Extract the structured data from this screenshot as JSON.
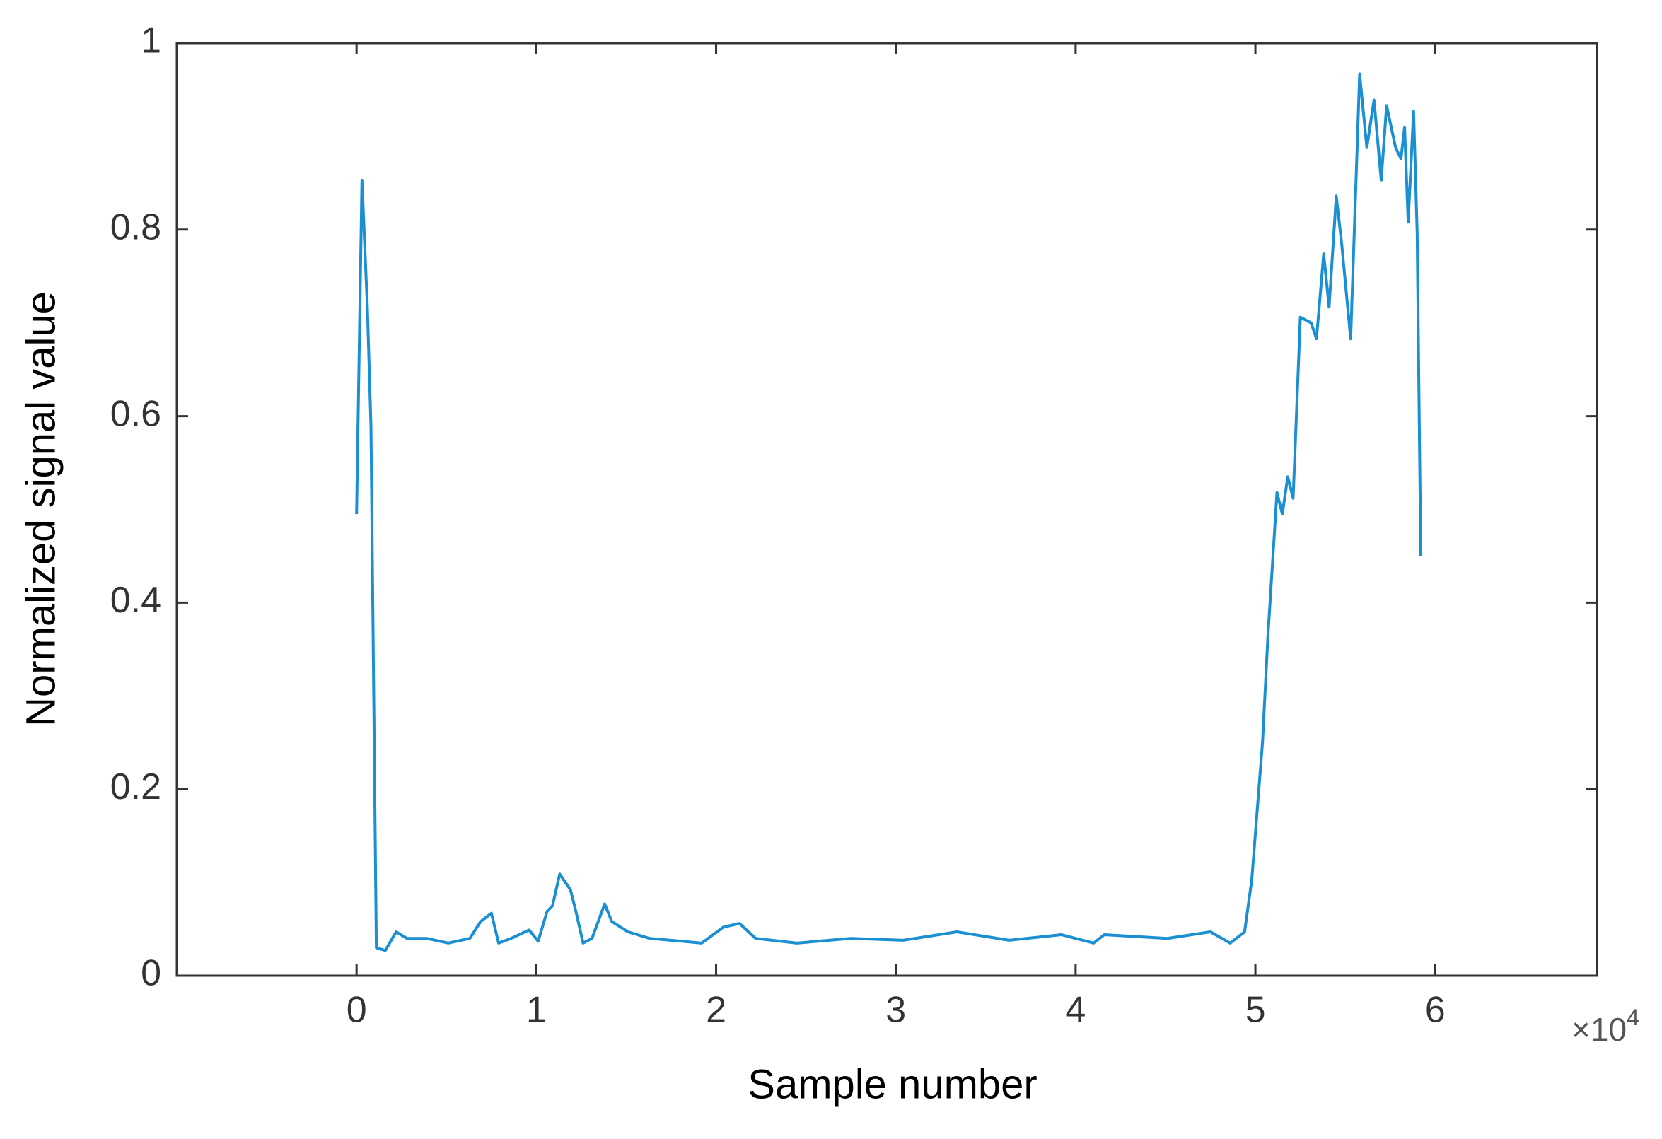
{
  "chart_data": {
    "type": "line",
    "xlabel": "Sample number",
    "ylabel": "Normalized signal value",
    "x_multiplier": "×10",
    "x_multiplier_exp": "4",
    "xlim": [
      -10000,
      69000
    ],
    "ylim": [
      0,
      1
    ],
    "xticks": [
      0,
      {
        "value": 10000,
        "label": "1"
      },
      {
        "value": 20000,
        "label": "2"
      },
      {
        "value": 30000,
        "label": "3"
      },
      {
        "value": 40000,
        "label": "4"
      },
      {
        "value": 50000,
        "label": "5"
      },
      {
        "value": 60000,
        "label": "6"
      }
    ],
    "yticks": [
      0,
      0.2,
      0.4,
      0.6,
      0.8,
      1
    ],
    "x": [
      0,
      300,
      600,
      800,
      1100,
      1600,
      2200,
      2800,
      3900,
      5100,
      6300,
      6900,
      7500,
      7900,
      8600,
      9600,
      10100,
      10600,
      10900,
      11300,
      11900,
      12200,
      12600,
      13100,
      13800,
      14200,
      15100,
      16300,
      18100,
      19200,
      20400,
      21300,
      22200,
      24500,
      27500,
      30400,
      33400,
      36300,
      39200,
      41000,
      41600,
      45100,
      47500,
      48600,
      49400,
      49800,
      50400,
      50700,
      51200,
      51500,
      51800,
      52100,
      52500,
      53100,
      53400,
      53800,
      54100,
      54500,
      54800,
      55300,
      55800,
      56200,
      56600,
      57000,
      57300,
      57800,
      58100,
      58300,
      58500,
      58800,
      59000,
      59200
    ],
    "series": [
      {
        "color": "#1a8fd2",
        "values": [
          0.495,
          0.853,
          0.717,
          0.59,
          0.03,
          0.027,
          0.047,
          0.04,
          0.04,
          0.035,
          0.04,
          0.058,
          0.067,
          0.035,
          0.04,
          0.049,
          0.037,
          0.069,
          0.075,
          0.109,
          0.092,
          0.069,
          0.035,
          0.04,
          0.077,
          0.058,
          0.047,
          0.04,
          0.037,
          0.035,
          0.052,
          0.056,
          0.04,
          0.035,
          0.04,
          0.038,
          0.047,
          0.038,
          0.044,
          0.035,
          0.044,
          0.04,
          0.047,
          0.035,
          0.047,
          0.103,
          0.251,
          0.365,
          0.518,
          0.495,
          0.535,
          0.512,
          0.706,
          0.7,
          0.683,
          0.774,
          0.717,
          0.836,
          0.785,
          0.683,
          0.967,
          0.888,
          0.939,
          0.853,
          0.933,
          0.888,
          0.876,
          0.91,
          0.808,
          0.927,
          0.797,
          0.45
        ]
      }
    ]
  }
}
